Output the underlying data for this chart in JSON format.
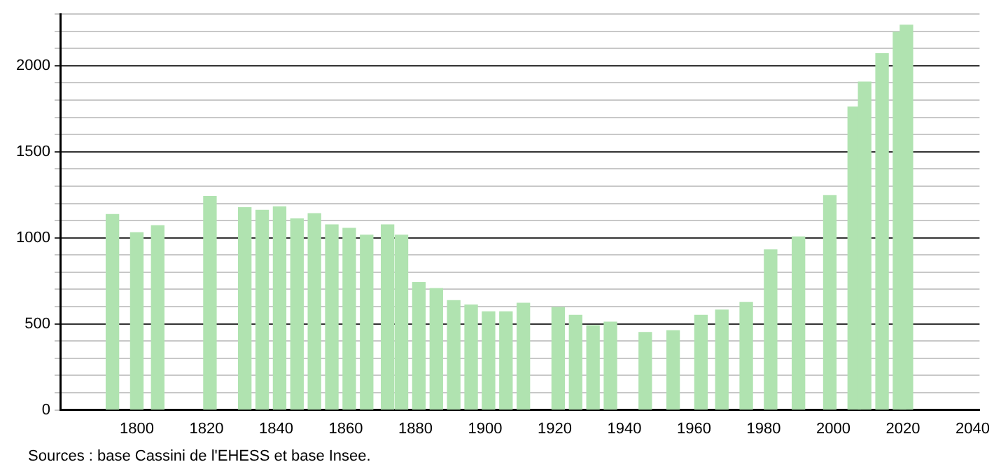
{
  "chart_data": {
    "type": "bar",
    "x": [
      1793,
      1800,
      1806,
      1821,
      1831,
      1836,
      1841,
      1846,
      1851,
      1856,
      1861,
      1866,
      1872,
      1876,
      1881,
      1886,
      1891,
      1896,
      1901,
      1906,
      1911,
      1921,
      1926,
      1931,
      1936,
      1946,
      1954,
      1962,
      1968,
      1975,
      1982,
      1990,
      1999,
      2006,
      2009,
      2014,
      2019,
      2021
    ],
    "values": [
      1135,
      1030,
      1070,
      1240,
      1175,
      1160,
      1180,
      1110,
      1140,
      1075,
      1055,
      1015,
      1075,
      1015,
      740,
      705,
      635,
      610,
      570,
      570,
      620,
      595,
      550,
      490,
      510,
      450,
      460,
      550,
      580,
      625,
      930,
      1005,
      1245,
      1760,
      1905,
      2070,
      2195,
      2235
    ],
    "color": "#b0e3b0",
    "xlim": [
      1778,
      2042
    ],
    "xticks": [
      1800,
      1820,
      1840,
      1860,
      1880,
      1900,
      1920,
      1940,
      1960,
      1980,
      2000,
      2020,
      2040
    ],
    "ylim": [
      0,
      2300
    ],
    "yticks": [
      0,
      {
        "value": 100,
        "label": null
      },
      {
        "value": 200,
        "label": null
      },
      {
        "value": 300,
        "label": null
      },
      {
        "value": 400,
        "label": null
      },
      500,
      {
        "value": 600,
        "label": null
      },
      {
        "value": 700,
        "label": null
      },
      {
        "value": 800,
        "label": null
      },
      {
        "value": 900,
        "label": null
      },
      1000,
      {
        "value": 1100,
        "label": null
      },
      {
        "value": 1200,
        "label": null
      },
      {
        "value": 1300,
        "label": null
      },
      {
        "value": 1400,
        "label": null
      },
      1500,
      {
        "value": 1600,
        "label": null
      },
      {
        "value": 1700,
        "label": null
      },
      {
        "value": 1800,
        "label": null
      },
      {
        "value": 1900,
        "label": null
      },
      2000,
      {
        "value": 2100,
        "label": null
      },
      {
        "value": 2200,
        "label": null
      },
      {
        "value": 2300,
        "label": null
      }
    ],
    "grid": "y",
    "annotations": [
      "Sources : base Cassini de l'EHESS et base Insee."
    ]
  }
}
